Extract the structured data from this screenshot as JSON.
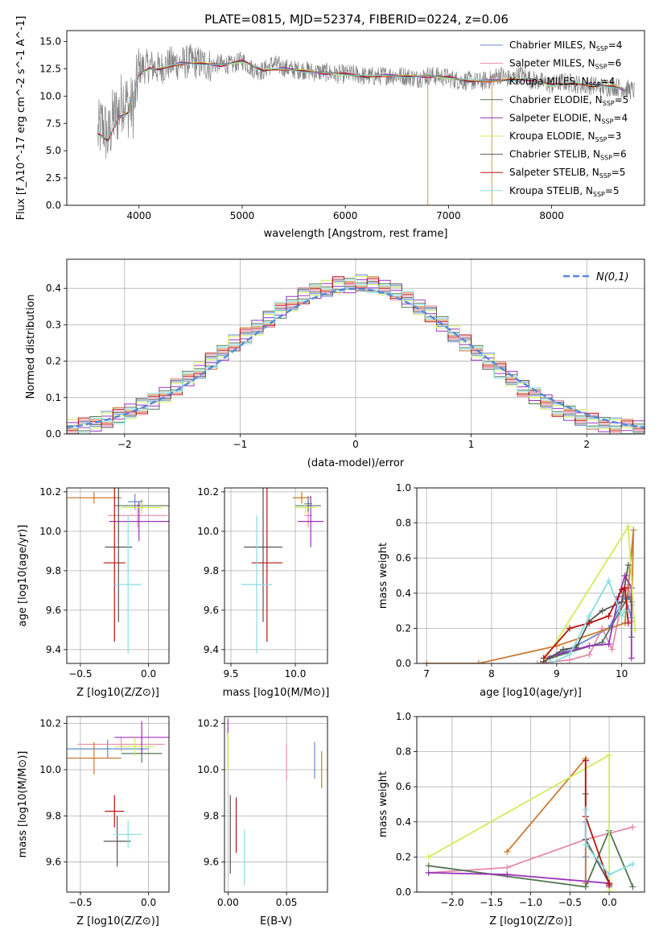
{
  "figure": {
    "title": "PLATE=0815, MJD=52374, FIBERID=0224, z=0.06"
  },
  "models": [
    {
      "name": "Chabrier MILES",
      "nssp": "4",
      "color": "#6688cc"
    },
    {
      "name": "Salpeter MILES",
      "nssp": "6",
      "color": "#e88aa8"
    },
    {
      "name": "Kroupa MILES",
      "nssp": "4",
      "color": "#cc7a33"
    },
    {
      "name": "Chabrier ELODIE",
      "nssp": "5",
      "color": "#557755"
    },
    {
      "name": "Salpeter ELODIE",
      "nssp": "4",
      "color": "#9933bb"
    },
    {
      "name": "Kroupa ELODIE",
      "nssp": "3",
      "color": "#ccee55"
    },
    {
      "name": "Chabrier STELIB",
      "nssp": "6",
      "color": "#555555"
    },
    {
      "name": "Salpeter STELIB",
      "nssp": "5",
      "color": "#bb1111"
    },
    {
      "name": "Kroupa STELIB",
      "nssp": "5",
      "color": "#88dde0"
    }
  ],
  "chart_data": [
    {
      "id": "spectrum",
      "type": "line",
      "title": "PLATE=0815, MJD=52374, FIBERID=0224, z=0.06",
      "xlabel": "wavelength [Angstrom, rest frame]",
      "ylabel": "Flux [f_λ10^-17 erg cm^-2 s^-1 A^-1]",
      "xlim": [
        3300,
        8900
      ],
      "ylim": [
        0,
        16
      ],
      "xticks": [
        4000,
        5000,
        6000,
        7000,
        8000
      ],
      "yticks": [
        0.0,
        2.5,
        5.0,
        7.5,
        10.0,
        12.5,
        15.0
      ],
      "grid": false,
      "legend": "top-right",
      "observed": {
        "x": [
          3600,
          3650,
          3700,
          3750,
          3800,
          3850,
          3900,
          3950,
          4000,
          4100,
          4200,
          4300,
          4400,
          4500,
          4600,
          4700,
          4800,
          4900,
          5000,
          5100,
          5200,
          5300,
          5400,
          5500,
          5600,
          5700,
          5800,
          5900,
          6000,
          6100,
          6200,
          6300,
          6400,
          6500,
          6600,
          6700,
          6800,
          6900,
          7000,
          7100,
          7200,
          7300,
          7400,
          7500,
          7600,
          7700,
          7800,
          7900,
          8000,
          8100,
          8200,
          8300,
          8400,
          8500,
          8600,
          8700,
          8800
        ],
        "y": [
          6.5,
          7.5,
          6.0,
          8.0,
          8.5,
          10.0,
          9.0,
          9.0,
          12.5,
          12.8,
          12.5,
          13.0,
          13.0,
          13.2,
          13.0,
          12.8,
          13.0,
          12.8,
          13.3,
          12.5,
          12.3,
          13.0,
          12.6,
          12.4,
          12.4,
          12.2,
          12.2,
          12.0,
          12.0,
          12.0,
          11.8,
          11.8,
          11.9,
          11.9,
          11.8,
          11.6,
          11.9,
          11.8,
          11.7,
          11.4,
          11.4,
          11.3,
          11.5,
          12.0,
          11.5,
          12.0,
          11.5,
          11.3,
          11.0,
          11.3,
          11.2,
          11.0,
          11.0,
          10.8,
          10.9,
          10.7,
          10.5
        ]
      },
      "model_fit": {
        "x": [
          3600,
          3700,
          3800,
          3900,
          4000,
          4100,
          4200,
          4400,
          4600,
          4800,
          5000,
          5200,
          5400,
          5600,
          5800,
          6000,
          6200,
          6400,
          6600,
          6800,
          7000,
          7200,
          7400,
          7600,
          7800,
          8000,
          8200,
          8400,
          8600,
          8700
        ],
        "y": [
          6.5,
          6.0,
          8.0,
          8.5,
          12.0,
          12.5,
          12.5,
          13.0,
          13.0,
          12.8,
          13.2,
          12.4,
          12.5,
          12.3,
          12.1,
          12.0,
          11.8,
          11.9,
          11.8,
          11.8,
          11.7,
          11.4,
          11.4,
          11.5,
          11.5,
          11.0,
          11.2,
          11.0,
          10.9,
          10.6
        ]
      }
    },
    {
      "id": "residuals",
      "type": "line",
      "xlabel": "(data-model)/error",
      "ylabel": "Normed distribution",
      "xlim": [
        -2.5,
        2.5
      ],
      "ylim": [
        0,
        0.48
      ],
      "xticks": [
        -2,
        -1,
        0,
        1,
        2
      ],
      "yticks": [
        0.0,
        0.1,
        0.2,
        0.3,
        0.4
      ],
      "grid": true,
      "legend": "top-right",
      "gaussian_label": "N(0,1)",
      "gaussian_color": "#5588dd",
      "hist_bin_width": 0.1,
      "hist_centers": [
        -2.45,
        -2.35,
        -2.25,
        -2.15,
        -2.05,
        -1.95,
        -1.85,
        -1.75,
        -1.65,
        -1.55,
        -1.45,
        -1.35,
        -1.25,
        -1.15,
        -1.05,
        -0.95,
        -0.85,
        -0.75,
        -0.65,
        -0.55,
        -0.45,
        -0.35,
        -0.25,
        -0.15,
        -0.05,
        0.05,
        0.15,
        0.25,
        0.35,
        0.45,
        0.55,
        0.65,
        0.75,
        0.85,
        0.95,
        1.05,
        1.15,
        1.25,
        1.35,
        1.45,
        1.55,
        1.65,
        1.75,
        1.85,
        1.95,
        2.05,
        2.15,
        2.25,
        2.35,
        2.45
      ],
      "hist_mean": [
        0.018,
        0.022,
        0.03,
        0.04,
        0.05,
        0.06,
        0.075,
        0.09,
        0.11,
        0.13,
        0.15,
        0.175,
        0.2,
        0.225,
        0.25,
        0.27,
        0.29,
        0.315,
        0.34,
        0.36,
        0.38,
        0.39,
        0.4,
        0.41,
        0.41,
        0.415,
        0.41,
        0.4,
        0.39,
        0.37,
        0.35,
        0.33,
        0.3,
        0.275,
        0.25,
        0.225,
        0.2,
        0.175,
        0.15,
        0.125,
        0.105,
        0.09,
        0.07,
        0.055,
        0.045,
        0.035,
        0.028,
        0.022,
        0.018,
        0.014
      ]
    },
    {
      "id": "age-vs-Z",
      "type": "scatter",
      "xlabel": "Z [log10(Z/Z⊙)]",
      "ylabel": "age [log10(age/yr)]",
      "xlim": [
        -0.6,
        0.15
      ],
      "ylim": [
        9.33,
        10.22
      ],
      "xticks": [
        -0.5,
        0.0
      ],
      "yticks": [
        9.4,
        9.6,
        9.8,
        10.0,
        10.2
      ],
      "grid": true,
      "points": [
        {
          "x": -0.1,
          "y": 10.15,
          "xerr": 0.05,
          "yerr": 0.04
        },
        {
          "x": -0.08,
          "y": 10.08,
          "xerr": 0.22,
          "yerr": 0.06
        },
        {
          "x": -0.4,
          "y": 10.17,
          "xerr": 0.2,
          "yerr": 0.03
        },
        {
          "x": -0.05,
          "y": 10.13,
          "xerr": 0.2,
          "yerr": 0.03
        },
        {
          "x": -0.07,
          "y": 10.05,
          "xerr": 0.22,
          "yerr": 0.1
        },
        {
          "x": -0.05,
          "y": 10.12,
          "xerr": 0.15,
          "yerr": 0.03
        },
        {
          "x": -0.22,
          "y": 9.92,
          "xerr": 0.1,
          "yerr": 0.38
        },
        {
          "x": -0.25,
          "y": 9.84,
          "xerr": 0.08,
          "yerr": 0.4
        },
        {
          "x": -0.15,
          "y": 9.73,
          "xerr": 0.1,
          "yerr": 0.35
        }
      ]
    },
    {
      "id": "age-vs-mass",
      "type": "scatter",
      "xlabel": "mass [log10(M/M⊙)]",
      "xlim": [
        9.45,
        10.25
      ],
      "ylim": [
        9.33,
        10.22
      ],
      "xticks": [
        9.5,
        10.0
      ],
      "yticks": [
        9.4,
        9.6,
        9.8,
        10.0,
        10.2
      ],
      "grid": true,
      "points": [
        {
          "x": 10.1,
          "y": 10.14,
          "xerr": 0.03,
          "yerr": 0.04
        },
        {
          "x": 10.1,
          "y": 10.08,
          "xerr": 0.03,
          "yerr": 0.06
        },
        {
          "x": 10.05,
          "y": 10.17,
          "xerr": 0.07,
          "yerr": 0.03
        },
        {
          "x": 10.1,
          "y": 10.13,
          "xerr": 0.1,
          "yerr": 0.03
        },
        {
          "x": 10.12,
          "y": 10.05,
          "xerr": 0.1,
          "yerr": 0.13
        },
        {
          "x": 10.08,
          "y": 10.12,
          "xerr": 0.08,
          "yerr": 0.03
        },
        {
          "x": 9.75,
          "y": 9.92,
          "xerr": 0.15,
          "yerr": 0.38
        },
        {
          "x": 9.78,
          "y": 9.84,
          "xerr": 0.12,
          "yerr": 0.4
        },
        {
          "x": 9.7,
          "y": 9.73,
          "xerr": 0.12,
          "yerr": 0.35
        }
      ]
    },
    {
      "id": "massweight-vs-age",
      "type": "line",
      "xlabel": "age [log10(age/yr)]",
      "ylabel": "mass weight",
      "xlim": [
        6.85,
        10.35
      ],
      "ylim": [
        0,
        1.0
      ],
      "xticks": [
        7,
        8,
        9,
        10
      ],
      "yticks": [
        0.0,
        0.2,
        0.4,
        0.6,
        0.8,
        1.0
      ],
      "grid": true,
      "series": [
        {
          "x": [
            8.75,
            9.0,
            9.3,
            9.8,
            10.05,
            10.15
          ],
          "y": [
            0.0,
            0.05,
            0.1,
            0.2,
            0.38,
            0.26
          ]
        },
        {
          "x": [
            8.7,
            9.2,
            9.5,
            9.7,
            9.85,
            10.0,
            10.1,
            10.15
          ],
          "y": [
            0.0,
            0.02,
            0.05,
            0.2,
            0.08,
            0.35,
            0.45,
            0.33
          ]
        },
        {
          "x": [
            7.0,
            7.8,
            9.0,
            10.05,
            10.18,
            10.15
          ],
          "y": [
            0.0,
            0.0,
            0.1,
            0.23,
            0.76,
            0.24
          ]
        },
        {
          "x": [
            8.9,
            9.7,
            10.1,
            10.15,
            10.15
          ],
          "y": [
            0.03,
            0.12,
            0.38,
            0.35,
            0.15
          ]
        },
        {
          "x": [
            8.8,
            9.5,
            9.8,
            9.95,
            10.05,
            10.15,
            10.15
          ],
          "y": [
            0.03,
            0.1,
            0.11,
            0.38,
            0.5,
            0.43,
            0.03
          ]
        },
        {
          "x": [
            8.8,
            10.1,
            10.2
          ],
          "y": [
            0.01,
            0.78,
            0.19
          ]
        },
        {
          "x": [
            8.8,
            9.1,
            9.3,
            9.5,
            9.7,
            10.0,
            10.1
          ],
          "y": [
            0.01,
            0.08,
            0.09,
            0.24,
            0.3,
            0.35,
            0.56
          ]
        },
        {
          "x": [
            8.8,
            9.2,
            9.5,
            9.8,
            10.0,
            10.05,
            10.1
          ],
          "y": [
            0.03,
            0.2,
            0.23,
            0.27,
            0.42,
            0.43,
            0.23
          ]
        },
        {
          "x": [
            8.9,
            9.2,
            9.5,
            9.8,
            10.0,
            10.05
          ],
          "y": [
            0.0,
            0.05,
            0.27,
            0.47,
            0.27,
            0.3
          ]
        }
      ]
    },
    {
      "id": "mass-vs-Z",
      "type": "scatter",
      "xlabel": "Z [log10(Z/Z⊙)]",
      "ylabel": "mass [log10(M/M⊙)]",
      "xlim": [
        -0.6,
        0.15
      ],
      "ylim": [
        9.47,
        10.23
      ],
      "xticks": [
        -0.5,
        0.0
      ],
      "yticks": [
        9.6,
        9.8,
        10.0,
        10.2
      ],
      "grid": true,
      "points": [
        {
          "x": -0.3,
          "y": 10.09,
          "xerr": 0.3,
          "yerr": 0.04
        },
        {
          "x": -0.2,
          "y": 10.11,
          "xerr": 0.32,
          "yerr": 0.03
        },
        {
          "x": -0.4,
          "y": 10.05,
          "xerr": 0.2,
          "yerr": 0.07
        },
        {
          "x": -0.05,
          "y": 10.07,
          "xerr": 0.15,
          "yerr": 0.04
        },
        {
          "x": -0.05,
          "y": 10.14,
          "xerr": 0.2,
          "yerr": 0.07
        },
        {
          "x": -0.1,
          "y": 10.1,
          "xerr": 0.15,
          "yerr": 0.04
        },
        {
          "x": -0.23,
          "y": 9.69,
          "xerr": 0.1,
          "yerr": 0.11
        },
        {
          "x": -0.25,
          "y": 9.82,
          "xerr": 0.07,
          "yerr": 0.07
        },
        {
          "x": -0.15,
          "y": 9.72,
          "xerr": 0.1,
          "yerr": 0.06
        }
      ]
    },
    {
      "id": "mass-vs-EBV",
      "type": "scatter",
      "xlabel": "E(B-V)",
      "xlim": [
        -0.003,
        0.085
      ],
      "ylim": [
        9.47,
        10.23
      ],
      "xticks": [
        0.0,
        0.05
      ],
      "yticks": [
        9.6,
        9.8,
        10.0,
        10.2
      ],
      "grid": true,
      "points": [
        {
          "x": 0.074,
          "y": 10.04,
          "yerr": 0.08
        },
        {
          "x": 0.05,
          "y": 10.03,
          "yerr": 0.08
        },
        {
          "x": 0.08,
          "y": 10.0,
          "yerr": 0.08
        },
        {
          "x": 0.0,
          "y": 10.08,
          "yerr": 0.08
        },
        {
          "x": 0.0,
          "y": 10.18,
          "yerr": 0.04
        },
        {
          "x": 0.0,
          "y": 10.08,
          "yerr": 0.08
        },
        {
          "x": 0.002,
          "y": 9.72,
          "yerr": 0.17
        },
        {
          "x": 0.007,
          "y": 9.76,
          "yerr": 0.12
        },
        {
          "x": 0.014,
          "y": 9.62,
          "yerr": 0.12
        }
      ]
    },
    {
      "id": "massweight-vs-Z",
      "type": "line",
      "xlabel": "Z [log10(Z/Z⊙)]",
      "ylabel": "mass weight",
      "xlim": [
        -2.45,
        0.45
      ],
      "ylim": [
        0,
        1.0
      ],
      "xticks": [
        -2.0,
        -1.5,
        -1.0,
        -0.5,
        0.0
      ],
      "yticks": [
        0.0,
        0.2,
        0.4,
        0.6,
        0.8,
        1.0
      ],
      "grid": true,
      "series": [
        {
          "x": [
            -0.3,
            -0.3,
            -0.3
          ],
          "y": [
            0.03,
            0.4,
            0.2
          ]
        },
        {
          "x": [
            -2.3,
            -1.3,
            -0.3,
            0.3
          ],
          "y": [
            0.11,
            0.14,
            0.3,
            0.37
          ]
        },
        {
          "x": [
            -1.3,
            -0.3,
            -0.3
          ],
          "y": [
            0.23,
            0.76,
            0.05
          ]
        },
        {
          "x": [
            -2.3,
            -0.3,
            0.0,
            0.3
          ],
          "y": [
            0.15,
            0.03,
            0.35,
            0.03
          ]
        },
        {
          "x": [
            -2.3,
            -1.3,
            0.0,
            0.0
          ],
          "y": [
            0.11,
            0.1,
            0.05,
            0.03
          ]
        },
        {
          "x": [
            -2.3,
            0.0,
            0.0
          ],
          "y": [
            0.2,
            0.78,
            0.01
          ]
        },
        {
          "x": [
            -0.3,
            -0.3,
            0.0,
            0.0
          ],
          "y": [
            0.56,
            0.3,
            0.05,
            0.04
          ]
        },
        {
          "x": [
            -0.3,
            -0.3,
            0.0,
            0.0
          ],
          "y": [
            0.75,
            0.43,
            0.05,
            0.04
          ]
        },
        {
          "x": [
            -0.3,
            -0.3,
            0.0,
            0.3
          ],
          "y": [
            0.47,
            0.27,
            0.1,
            0.16
          ]
        }
      ]
    }
  ]
}
